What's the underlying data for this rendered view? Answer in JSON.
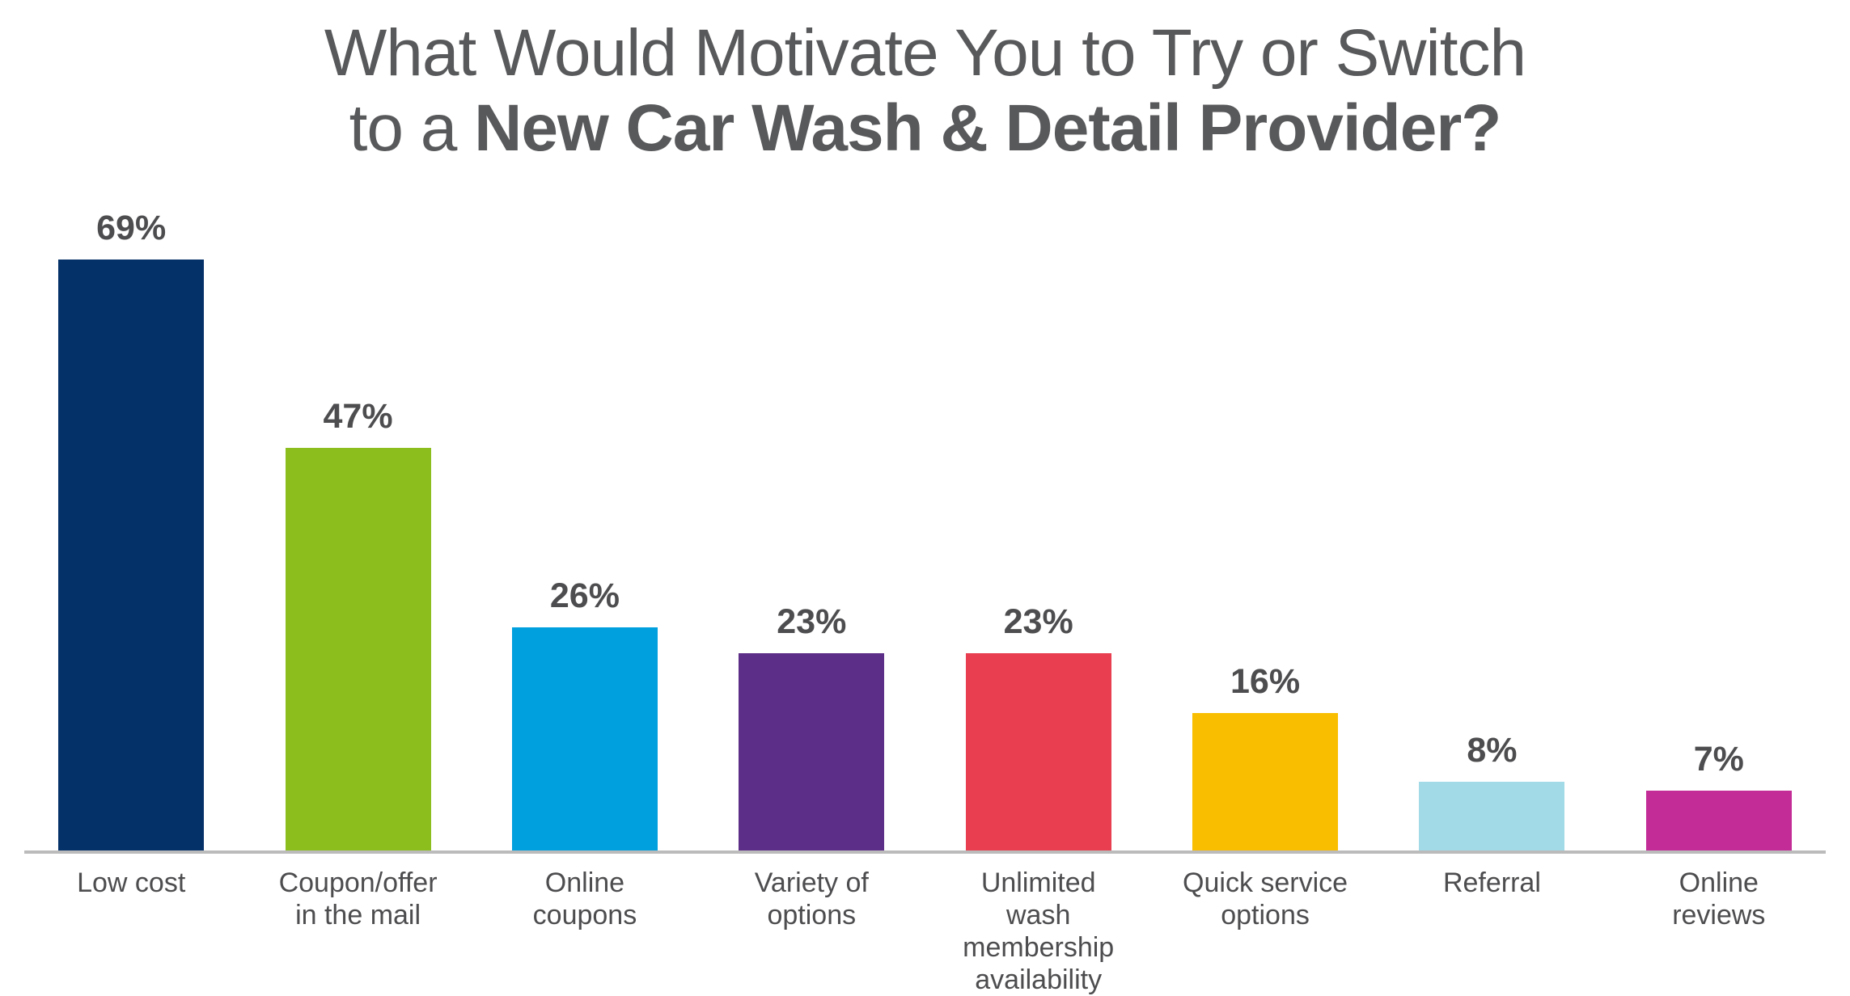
{
  "title": {
    "line1": "What Would Motivate You to Try or Switch",
    "line2_regular": "to a ",
    "line2_bold": "New Car Wash & Detail Provider?"
  },
  "chart_data": {
    "type": "bar",
    "title": "What Would Motivate You to Try or Switch to a New Car Wash & Detail Provider?",
    "categories": [
      "Low cost",
      "Coupon/offer\nin the mail",
      "Online\ncoupons",
      "Variety of\noptions",
      "Unlimited\nwash\nmembership\navailability",
      "Quick service\noptions",
      "Referral",
      "Online\nreviews"
    ],
    "values": [
      69,
      47,
      26,
      23,
      23,
      16,
      8,
      7
    ],
    "value_labels": [
      "69%",
      "47%",
      "26%",
      "23%",
      "23%",
      "16%",
      "8%",
      "7%"
    ],
    "bar_colors": [
      "#053169",
      "#8CBE1E",
      "#009FDE",
      "#5C2E87",
      "#E83E50",
      "#F9BE00",
      "#A3DAE8",
      "#C32B96"
    ],
    "xlabel": "",
    "ylabel": "",
    "ylim": [
      0,
      75
    ],
    "grid": false,
    "legend": false,
    "value_labels_position": "above-bars",
    "axis_line_color": "#BBBBBB",
    "title_color": "#58595B",
    "label_color": "#4D4D4F"
  }
}
